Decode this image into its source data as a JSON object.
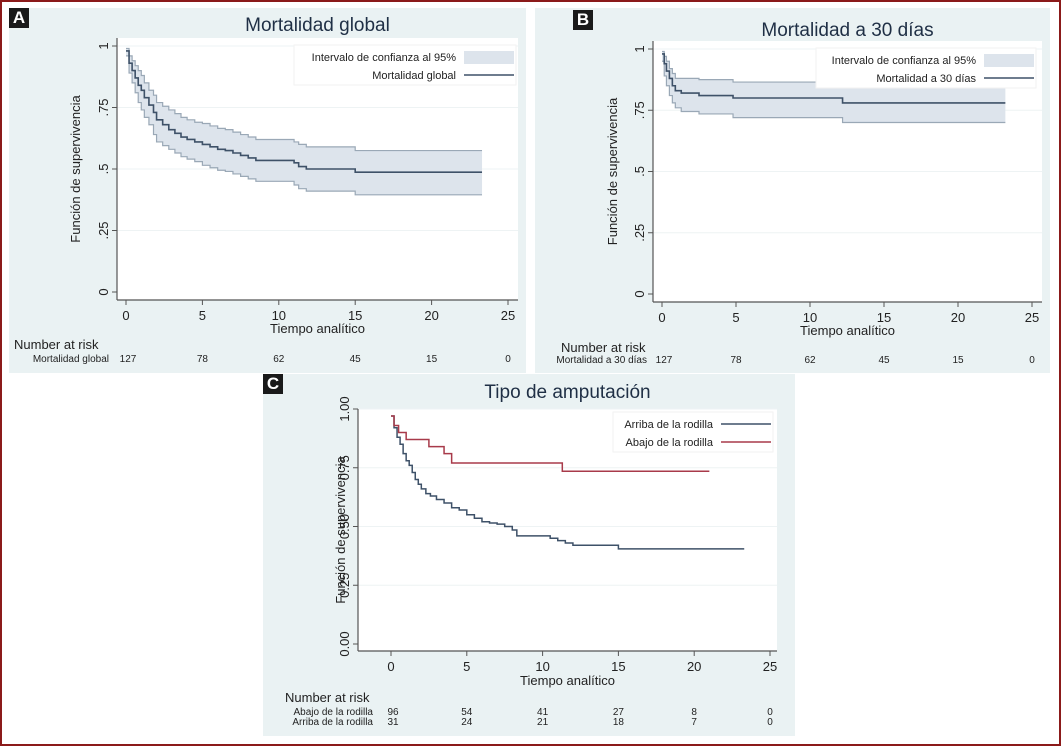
{
  "figure": {
    "panels": [
      "A",
      "B",
      "C"
    ],
    "border_color": "#8b1a1a",
    "panel_bg": "#eaf2f3",
    "ci_fill": "#dde4ec",
    "ci_line": "#9aa8b6",
    "main_line": "#3e5168",
    "red_line": "#a83a4a"
  },
  "chart_data": [
    {
      "id": "A",
      "type": "line",
      "title": "Mortalidad global",
      "xlabel": "Tiempo analítico",
      "ylabel": "Función de supervivencia",
      "xlim": [
        0,
        25
      ],
      "ylim": [
        0,
        1
      ],
      "xticks": [
        "0",
        "5",
        "10",
        "15",
        "20",
        "25"
      ],
      "xtick_values": [
        0,
        5,
        10,
        15,
        20,
        25
      ],
      "yticks": [
        "0",
        ".25",
        ".5",
        ".75",
        "1"
      ],
      "ytick_values": [
        0,
        0.25,
        0.5,
        0.75,
        1
      ],
      "grid": true,
      "legend_position": "top-right",
      "legend": [
        "Intervalo de confianza al 95%",
        "Mortalidad global"
      ],
      "series": [
        {
          "name": "Mortalidad global",
          "role": "main",
          "x": [
            0,
            0.2,
            0.4,
            0.6,
            0.8,
            1.0,
            1.2,
            1.5,
            1.8,
            2.0,
            2.4,
            2.8,
            3.2,
            3.6,
            4.0,
            4.5,
            5.0,
            5.5,
            6.0,
            6.5,
            7.0,
            7.5,
            8.0,
            8.5,
            11.0,
            11.3,
            11.8,
            15.0,
            23.3
          ],
          "y": [
            0.98,
            0.93,
            0.9,
            0.87,
            0.84,
            0.82,
            0.79,
            0.76,
            0.73,
            0.7,
            0.68,
            0.66,
            0.645,
            0.63,
            0.62,
            0.61,
            0.6,
            0.59,
            0.58,
            0.575,
            0.565,
            0.555,
            0.545,
            0.535,
            0.525,
            0.51,
            0.5,
            0.487,
            0.487
          ]
        },
        {
          "name": "IC superior",
          "role": "ci_upper",
          "x": [
            0,
            0.2,
            0.4,
            0.6,
            0.8,
            1.0,
            1.2,
            1.5,
            1.8,
            2.0,
            2.4,
            2.8,
            3.2,
            3.6,
            4.0,
            4.5,
            5.0,
            5.5,
            6.0,
            6.5,
            7.0,
            7.5,
            8.0,
            8.5,
            11.0,
            11.3,
            11.8,
            15.0,
            23.3
          ],
          "y": [
            0.99,
            0.96,
            0.94,
            0.92,
            0.9,
            0.88,
            0.85,
            0.82,
            0.8,
            0.77,
            0.755,
            0.74,
            0.725,
            0.71,
            0.7,
            0.69,
            0.685,
            0.675,
            0.665,
            0.66,
            0.65,
            0.64,
            0.63,
            0.62,
            0.61,
            0.6,
            0.59,
            0.575,
            0.575
          ]
        },
        {
          "name": "IC inferior",
          "role": "ci_lower",
          "x": [
            0,
            0.2,
            0.4,
            0.6,
            0.8,
            1.0,
            1.2,
            1.5,
            1.8,
            2.0,
            2.4,
            2.8,
            3.2,
            3.6,
            4.0,
            4.5,
            5.0,
            5.5,
            6.0,
            6.5,
            7.0,
            7.5,
            8.0,
            8.5,
            11.0,
            11.3,
            11.8,
            15.0,
            23.3
          ],
          "y": [
            0.96,
            0.89,
            0.85,
            0.81,
            0.77,
            0.74,
            0.71,
            0.68,
            0.64,
            0.61,
            0.595,
            0.58,
            0.565,
            0.55,
            0.54,
            0.53,
            0.515,
            0.505,
            0.495,
            0.49,
            0.48,
            0.47,
            0.46,
            0.45,
            0.435,
            0.42,
            0.41,
            0.395,
            0.395
          ]
        }
      ],
      "risk_table": {
        "header": "Number at risk",
        "rows": [
          {
            "label": "Mortalidad global",
            "values": [
              "127",
              "78",
              "62",
              "45",
              "15",
              "0"
            ]
          }
        ]
      }
    },
    {
      "id": "B",
      "type": "line",
      "title": "Mortalidad a 30 días",
      "xlabel": "Tiempo analítico",
      "ylabel": "Función de supervivencia",
      "xlim": [
        0,
        25
      ],
      "ylim": [
        0,
        1
      ],
      "xticks": [
        "0",
        "5",
        "10",
        "15",
        "20",
        "25"
      ],
      "xtick_values": [
        0,
        5,
        10,
        15,
        20,
        25
      ],
      "yticks": [
        "0",
        ".25",
        ".5",
        ".75",
        "1"
      ],
      "ytick_values": [
        0,
        0.25,
        0.5,
        0.75,
        1
      ],
      "grid": true,
      "legend_position": "top-right",
      "legend": [
        "Intervalo de confianza al 95%",
        "Mortalidad a 30 días"
      ],
      "series": [
        {
          "name": "Mortalidad a 30 días",
          "role": "main",
          "x": [
            0,
            0.15,
            0.3,
            0.5,
            0.7,
            0.9,
            1.3,
            2.5,
            4.8,
            12.2,
            23.2
          ],
          "y": [
            0.98,
            0.94,
            0.91,
            0.88,
            0.85,
            0.83,
            0.82,
            0.81,
            0.8,
            0.78,
            0.78
          ]
        },
        {
          "name": "IC superior",
          "role": "ci_upper",
          "x": [
            0,
            0.15,
            0.3,
            0.5,
            0.7,
            0.9,
            1.3,
            2.5,
            4.8,
            12.2,
            23.2
          ],
          "y": [
            0.99,
            0.97,
            0.95,
            0.92,
            0.9,
            0.88,
            0.88,
            0.875,
            0.865,
            0.85,
            0.85
          ]
        },
        {
          "name": "IC inferior",
          "role": "ci_lower",
          "x": [
            0,
            0.15,
            0.3,
            0.5,
            0.7,
            0.9,
            1.3,
            2.5,
            4.8,
            12.2,
            23.2
          ],
          "y": [
            0.95,
            0.89,
            0.85,
            0.81,
            0.78,
            0.76,
            0.745,
            0.735,
            0.72,
            0.7,
            0.7
          ]
        }
      ],
      "risk_table": {
        "header": "Number at risk",
        "rows": [
          {
            "label": "Mortalidad a 30 días",
            "values": [
              "127",
              "78",
              "62",
              "45",
              "15",
              "0"
            ]
          }
        ]
      }
    },
    {
      "id": "C",
      "type": "line",
      "title": "Tipo de amputación",
      "xlabel": "Tiempo analítico",
      "ylabel": "Función de supervivencia",
      "xlim": [
        0,
        25
      ],
      "ylim": [
        0,
        1
      ],
      "xticks": [
        "0",
        "5",
        "10",
        "15",
        "20",
        "25"
      ],
      "xtick_values": [
        0,
        5,
        10,
        15,
        20,
        25
      ],
      "yticks": [
        "0.00",
        "0.25",
        "0.50",
        "0.75",
        "1.00"
      ],
      "ytick_values": [
        0,
        0.25,
        0.5,
        0.75,
        1
      ],
      "grid": true,
      "legend_position": "top-right",
      "legend": [
        "Arriba de la rodilla",
        "Abajo de la rodilla"
      ],
      "series": [
        {
          "name": "Arriba de la rodilla",
          "color": "#3e5168",
          "x": [
            0,
            0.2,
            0.4,
            0.6,
            0.8,
            1.0,
            1.2,
            1.4,
            1.6,
            1.8,
            2.0,
            2.3,
            2.6,
            3.0,
            3.5,
            4.0,
            4.5,
            5.0,
            5.5,
            6.0,
            6.5,
            7.0,
            7.5,
            8.0,
            8.3,
            10.5,
            11.0,
            11.5,
            12.0,
            15.0,
            23.3
          ],
          "y": [
            0.97,
            0.92,
            0.88,
            0.85,
            0.81,
            0.78,
            0.76,
            0.73,
            0.7,
            0.68,
            0.66,
            0.64,
            0.63,
            0.615,
            0.6,
            0.58,
            0.57,
            0.55,
            0.535,
            0.52,
            0.515,
            0.51,
            0.5,
            0.485,
            0.46,
            0.45,
            0.44,
            0.43,
            0.42,
            0.405,
            0.405
          ]
        },
        {
          "name": "Abajo de la rodilla",
          "color": "#a83a4a",
          "x": [
            0,
            0.2,
            0.5,
            1.0,
            2.5,
            3.5,
            4.0,
            11.3,
            21.0
          ],
          "y": [
            0.97,
            0.93,
            0.9,
            0.87,
            0.84,
            0.81,
            0.77,
            0.735,
            0.735
          ]
        }
      ],
      "risk_table": {
        "header": "Number at risk",
        "rows": [
          {
            "label": "Abajo de la rodilla",
            "values": [
              "96",
              "54",
              "41",
              "27",
              "8",
              "0"
            ]
          },
          {
            "label": "Arriba de la rodilla",
            "values": [
              "31",
              "24",
              "21",
              "18",
              "7",
              "0"
            ]
          }
        ]
      }
    }
  ]
}
